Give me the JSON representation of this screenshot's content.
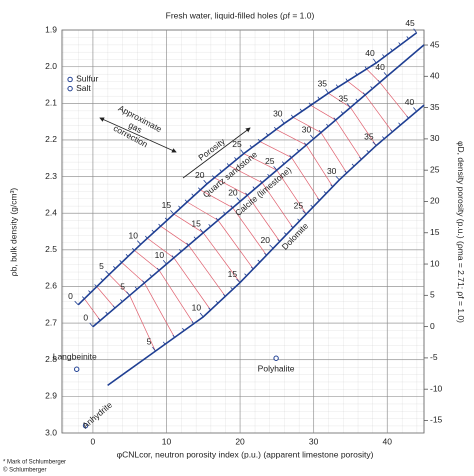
{
  "chart_data": {
    "type": "line",
    "title": "Fresh water, liquid-filled holes (ρf = 1.0)",
    "x_label": "φCNLcor, neutron porosity index (p.u.) (apparent limestone porosity)",
    "y_label": "ρb, bulk density (g/cm³)",
    "y2_label": "φD, density porosity (p.u.) (ρma = 2.71; ρf = 1.0)",
    "footnotes": [
      "* Mark of Schlumberger",
      "© Schlumberger"
    ],
    "annotations": {
      "gas_correction": [
        "Approximate",
        "gas",
        "correction"
      ],
      "porosity": "Porosity"
    },
    "xlim": [
      -4.2,
      45
    ],
    "xticks": [
      0,
      10,
      20,
      30,
      40
    ],
    "ylim": [
      3.0,
      1.9
    ],
    "yticks": [
      1.9,
      {
        "value": 2.0,
        "label": "2.0"
      },
      2.1,
      2.2,
      2.3,
      2.4,
      2.5,
      2.6,
      2.7,
      2.8,
      2.9,
      {
        "value": 3.0,
        "label": "3.0"
      }
    ],
    "y2lim": [
      -17.0,
      47.4
    ],
    "y2ticks": [
      45,
      40,
      35,
      30,
      25,
      20,
      15,
      10,
      5,
      0,
      -5,
      -10,
      -15
    ],
    "grid": true,
    "series": [
      {
        "name": "Quartz sandstone",
        "color": "#1f3f93",
        "porosity": [
          0,
          5,
          10,
          15,
          20,
          25,
          30,
          35,
          40,
          45
        ],
        "x": [
          -2,
          2.2,
          6.5,
          11,
          15.5,
          20.5,
          26,
          32,
          38.5,
          44
        ],
        "values": [
          2.65,
          2.5675,
          2.485,
          2.4025,
          2.32,
          2.2375,
          2.155,
          2.0725,
          1.99,
          1.9075
        ]
      },
      {
        "name": "Calcite (limestone)",
        "color": "#1f3f93",
        "porosity": [
          0,
          5,
          10,
          15,
          20,
          25,
          30,
          35,
          40,
          null
        ],
        "x": [
          0,
          5,
          10,
          15,
          20,
          25,
          30,
          35,
          40,
          45
        ],
        "values": [
          2.71,
          2.6245,
          2.539,
          2.4535,
          2.368,
          2.2825,
          2.197,
          2.1115,
          2.026,
          1.9405
        ]
      },
      {
        "name": "Dolomite",
        "color": "#1f3f93",
        "porosity": [
          null,
          5,
          10,
          15,
          20,
          25,
          30,
          35,
          40,
          null
        ],
        "x": [
          2,
          8.5,
          15,
          20,
          24.5,
          29,
          33.5,
          38.5,
          44,
          45
        ],
        "values": [
          2.87,
          2.7765,
          2.683,
          2.5895,
          2.496,
          2.4025,
          2.309,
          2.2155,
          2.122,
          2.105
        ]
      }
    ],
    "points": [
      {
        "name": "Sulfur",
        "x": -3.1,
        "value": 2.035
      },
      {
        "name": "Salt",
        "x": -3.1,
        "value": 2.06
      },
      {
        "name": "Langbeinite",
        "x": -2.2,
        "value": 2.826
      },
      {
        "name": "Polyhalite",
        "x": 24.9,
        "value": 2.796
      },
      {
        "name": "Anhydrite",
        "x": -1,
        "value": 2.98
      }
    ]
  }
}
